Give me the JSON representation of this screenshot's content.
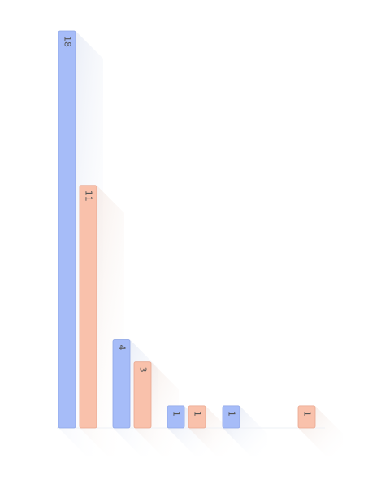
{
  "chart_data": {
    "type": "bar",
    "categories": [
      "",
      "",
      "",
      "",
      ""
    ],
    "series": [
      {
        "values": [
          18,
          4,
          1,
          1,
          null
        ],
        "color": "#a6bcf8",
        "stroke": "#8fa6e6"
      },
      {
        "values": [
          11,
          3,
          1,
          null,
          1
        ],
        "color": "#f9c1ab",
        "stroke": "#e9a78f"
      }
    ],
    "ylim": [
      0,
      18
    ],
    "grid": false,
    "legend": "none",
    "data_labels": "inside-top-rotated"
  }
}
